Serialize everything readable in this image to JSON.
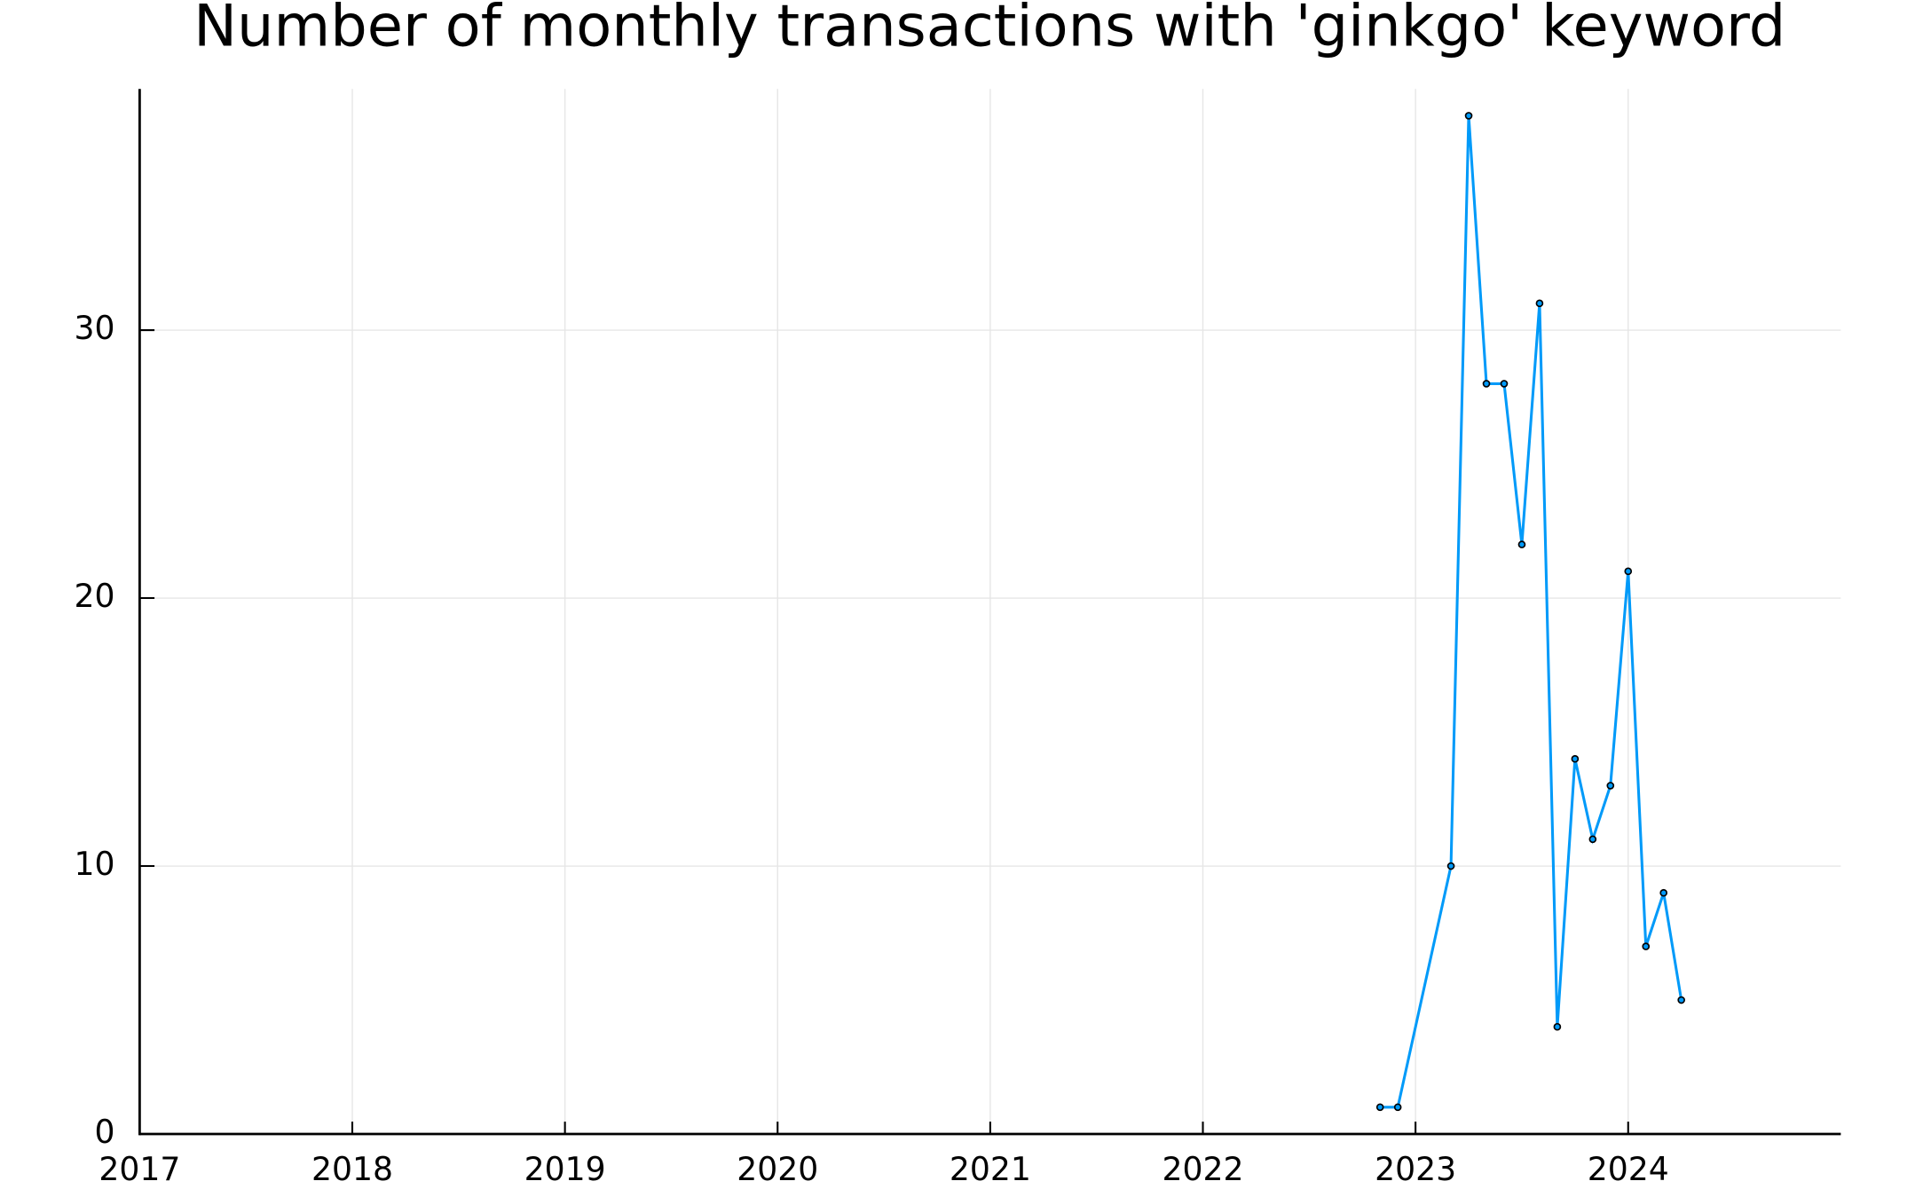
{
  "chart_data": {
    "type": "line",
    "title": "Number of monthly transactions with 'ginkgo' keyword",
    "x": [
      "2022-11",
      "2022-12",
      "2023-03",
      "2023-04",
      "2023-05",
      "2023-06",
      "2023-07",
      "2023-08",
      "2023-09",
      "2023-10",
      "2023-11",
      "2023-12",
      "2024-01",
      "2024-02",
      "2024-03",
      "2024-04"
    ],
    "series": [
      {
        "color": "#009af9",
        "values": [
          1,
          1,
          10,
          38,
          28,
          28,
          22,
          31,
          4,
          14,
          11,
          13,
          21,
          7,
          9,
          5
        ]
      }
    ],
    "xlim": [
      "2017-01",
      "2025-01"
    ],
    "xticks": [
      2017,
      2018,
      2019,
      2020,
      2021,
      2022,
      2023,
      2024
    ],
    "ylim": [
      0,
      39
    ],
    "yticks": [
      0,
      10,
      20,
      30
    ],
    "grid": true
  }
}
